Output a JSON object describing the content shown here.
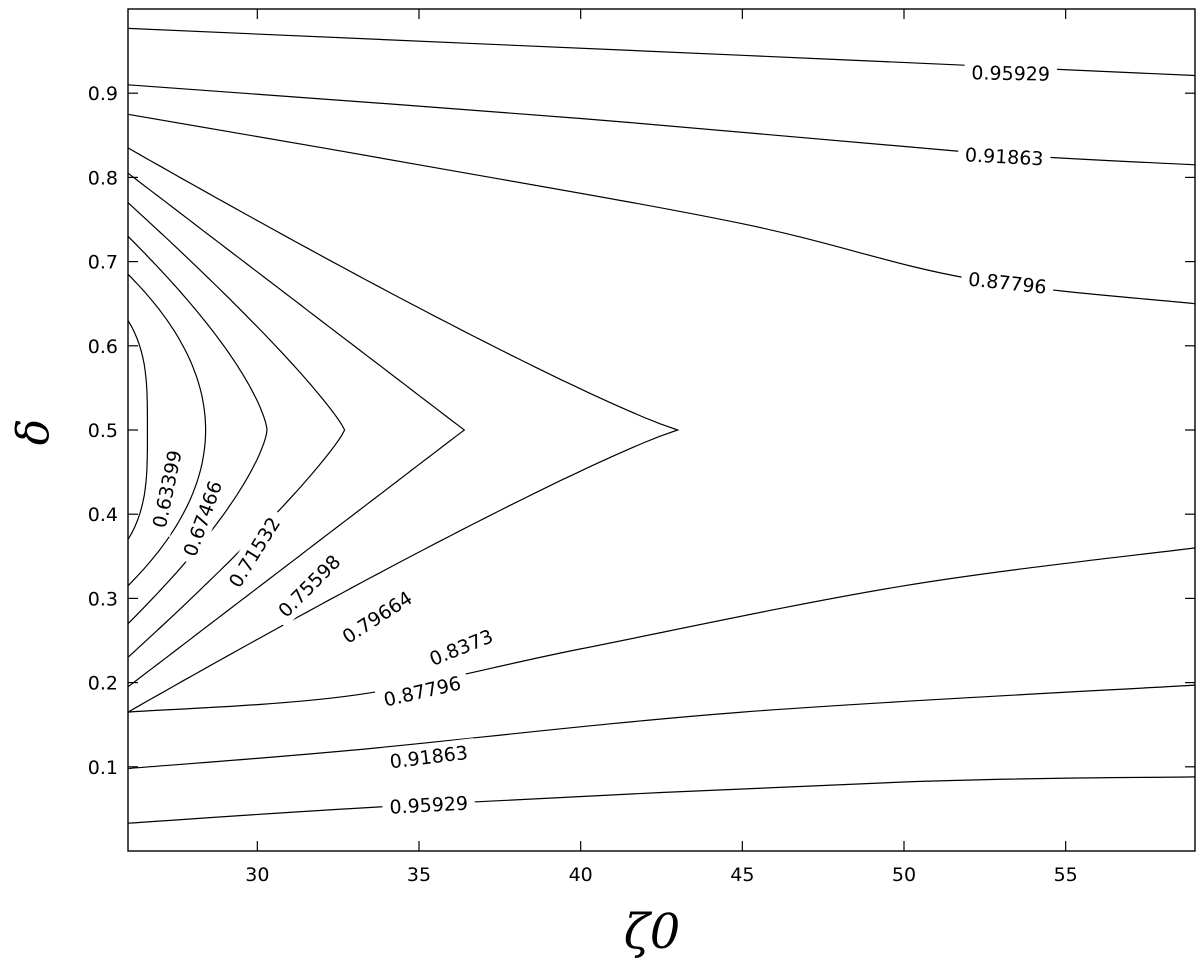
{
  "chart_data": {
    "type": "contour",
    "title": "",
    "xlabel": "ζ0",
    "ylabel": "δ",
    "xlim": [
      26,
      59
    ],
    "ylim": [
      0.0,
      1.0
    ],
    "xticks": [
      30,
      35,
      40,
      45,
      50,
      55
    ],
    "yticks": [
      0.1,
      0.2,
      0.3,
      0.4,
      0.5,
      0.6,
      0.7,
      0.8,
      0.9
    ],
    "xtick_labels": [
      "30",
      "35",
      "40",
      "45",
      "50",
      "55"
    ],
    "ytick_labels": [
      "0.1",
      "0.2",
      "0.3",
      "0.4",
      "0.5",
      "0.6",
      "0.7",
      "0.8",
      "0.9"
    ],
    "grid": false,
    "levels": [
      {
        "label": "0.63399",
        "value": 0.63399,
        "hw": 0.13,
        "tip": 26.6,
        "pa": 3.5,
        "shape": "closed",
        "label_at": [
          27.2,
          0.43
        ],
        "label_angle": -78
      },
      {
        "label": "0.67466",
        "value": 0.67466,
        "hw": 0.185,
        "tip": 28.4,
        "pa": 2.0,
        "shape": "closed",
        "label_at": [
          28.3,
          0.395
        ],
        "label_angle": -70
      },
      {
        "label": "0.71532",
        "value": 0.71532,
        "hw": 0.23,
        "tip": 30.3,
        "pa": 1.4,
        "shape": "closed",
        "label_at": [
          29.9,
          0.355
        ],
        "label_angle": -58
      },
      {
        "label": "0.75598",
        "value": 0.75598,
        "hw": 0.27,
        "tip": 32.7,
        "pa": 1.15,
        "shape": "closed",
        "label_at": [
          31.6,
          0.315
        ],
        "label_angle": -45
      },
      {
        "label": "0.79664",
        "value": 0.79664,
        "hw": 0.305,
        "tip": 36.4,
        "pa": 1.0,
        "shape": "closed",
        "label_at": [
          33.7,
          0.278
        ],
        "label_angle": -33
      },
      {
        "label": "0.8373",
        "value": 0.8373,
        "hw": 0.335,
        "tip": 43.0,
        "pa": 0.9,
        "shape": "closed",
        "label_at": [
          36.3,
          0.242
        ],
        "label_angle": -22
      },
      {
        "label": "0.87796",
        "value": 0.87796,
        "lower": [
          [
            26,
            0.165
          ],
          [
            33,
            0.185
          ],
          [
            40,
            0.24
          ],
          [
            50,
            0.315
          ],
          [
            59,
            0.36
          ]
        ],
        "upper": [
          [
            26,
            0.875
          ],
          [
            35,
            0.815
          ],
          [
            45,
            0.745
          ],
          [
            52,
            0.68
          ],
          [
            59,
            0.65
          ]
        ],
        "shape": "open",
        "label_lower": [
          35.1,
          0.19
        ],
        "label_lower_angle": -13,
        "label_upper": [
          53.2,
          0.675
        ],
        "label_upper_angle": 6
      },
      {
        "label": "0.91863",
        "value": 0.91863,
        "lower": [
          [
            26,
            0.098
          ],
          [
            33,
            0.12
          ],
          [
            45,
            0.165
          ],
          [
            59,
            0.197
          ]
        ],
        "upper": [
          [
            26,
            0.91
          ],
          [
            40,
            0.87
          ],
          [
            52,
            0.83
          ],
          [
            59,
            0.815
          ]
        ],
        "shape": "open",
        "label_lower": [
          35.3,
          0.112
        ],
        "label_lower_angle": -7,
        "label_upper": [
          53.1,
          0.825
        ],
        "label_upper_angle": 3
      },
      {
        "label": "0.95929",
        "value": 0.95929,
        "lower": [
          [
            26,
            0.033
          ],
          [
            35,
            0.055
          ],
          [
            50,
            0.082
          ],
          [
            59,
            0.088
          ]
        ],
        "upper": [
          [
            26,
            0.977
          ],
          [
            45,
            0.945
          ],
          [
            59,
            0.921
          ]
        ],
        "shape": "open",
        "label_lower": [
          35.3,
          0.055
        ],
        "label_lower_angle": -3,
        "label_upper": [
          53.3,
          0.924
        ],
        "label_upper_angle": 1
      }
    ]
  }
}
